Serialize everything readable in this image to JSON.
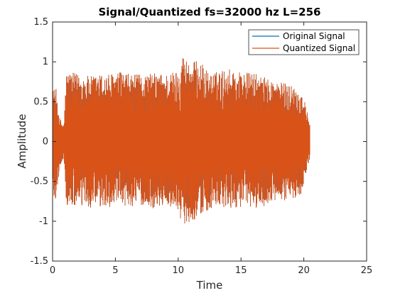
{
  "chart_data": {
    "type": "line",
    "title": "Signal/Quantized fs=32000 hz L=256",
    "xlabel": "Time",
    "ylabel": "Amplitude",
    "xlim": [
      0,
      25
    ],
    "ylim": [
      -1.5,
      1.5
    ],
    "xticks": [
      0,
      5,
      10,
      15,
      20,
      25
    ],
    "yticks": [
      -1.5,
      -1,
      -0.5,
      0,
      0.5,
      1,
      1.5
    ],
    "xtick_labels": [
      "0",
      "5",
      "10",
      "15",
      "20",
      "25"
    ],
    "ytick_labels": [
      "-1.5",
      "-1",
      "-0.5",
      "0",
      "0.5",
      "1",
      "1.5"
    ],
    "legend_position": "top-right",
    "series": [
      {
        "name": "Original Signal",
        "color": "#0072BD",
        "time_range": [
          0,
          20.5
        ],
        "envelope": [
          {
            "t": 0.0,
            "max": 0.3,
            "min": -0.3
          },
          {
            "t": 0.05,
            "max": 0.65,
            "min": -0.75
          },
          {
            "t": 0.3,
            "max": 0.65,
            "min": -0.7
          },
          {
            "t": 0.55,
            "max": 0.3,
            "min": -0.35
          },
          {
            "t": 0.9,
            "max": 0.22,
            "min": -0.2
          },
          {
            "t": 1.1,
            "max": 0.88,
            "min": -0.82
          },
          {
            "t": 2.0,
            "max": 0.85,
            "min": -0.82
          },
          {
            "t": 3.0,
            "max": 0.82,
            "min": -0.84
          },
          {
            "t": 4.0,
            "max": 0.85,
            "min": -0.85
          },
          {
            "t": 5.0,
            "max": 0.86,
            "min": -0.8
          },
          {
            "t": 5.5,
            "max": 0.88,
            "min": -0.82
          },
          {
            "t": 6.0,
            "max": 0.85,
            "min": -0.82
          },
          {
            "t": 7.0,
            "max": 0.84,
            "min": -0.8
          },
          {
            "t": 8.0,
            "max": 0.86,
            "min": -0.84
          },
          {
            "t": 9.0,
            "max": 0.85,
            "min": -0.8
          },
          {
            "t": 10.0,
            "max": 0.9,
            "min": -0.85
          },
          {
            "t": 10.3,
            "max": 1.1,
            "min": -1.05
          },
          {
            "t": 11.0,
            "max": 1.0,
            "min": -1.0
          },
          {
            "t": 11.7,
            "max": 1.02,
            "min": -0.95
          },
          {
            "t": 12.5,
            "max": 0.85,
            "min": -0.85
          },
          {
            "t": 14.0,
            "max": 0.92,
            "min": -0.85
          },
          {
            "t": 15.0,
            "max": 0.88,
            "min": -0.82
          },
          {
            "t": 16.0,
            "max": 0.86,
            "min": -0.85
          },
          {
            "t": 17.0,
            "max": 0.8,
            "min": -0.8
          },
          {
            "t": 18.0,
            "max": 0.75,
            "min": -0.75
          },
          {
            "t": 19.0,
            "max": 0.72,
            "min": -0.74
          },
          {
            "t": 19.8,
            "max": 0.62,
            "min": -0.65
          },
          {
            "t": 20.1,
            "max": 0.5,
            "min": -0.45
          },
          {
            "t": 20.5,
            "max": 0.2,
            "min": -0.2
          }
        ]
      },
      {
        "name": "Quantized Signal",
        "color": "#D95319",
        "time_range": [
          0,
          20.5
        ],
        "envelope": [
          {
            "t": 0.0,
            "max": 0.3,
            "min": -0.3
          },
          {
            "t": 0.05,
            "max": 0.66,
            "min": -0.76
          },
          {
            "t": 0.3,
            "max": 0.66,
            "min": -0.71
          },
          {
            "t": 0.55,
            "max": 0.3,
            "min": -0.35
          },
          {
            "t": 0.9,
            "max": 0.22,
            "min": -0.2
          },
          {
            "t": 1.1,
            "max": 0.88,
            "min": -0.82
          },
          {
            "t": 2.0,
            "max": 0.85,
            "min": -0.82
          },
          {
            "t": 3.0,
            "max": 0.82,
            "min": -0.84
          },
          {
            "t": 4.0,
            "max": 0.85,
            "min": -0.85
          },
          {
            "t": 5.0,
            "max": 0.86,
            "min": -0.8
          },
          {
            "t": 5.5,
            "max": 0.88,
            "min": -0.82
          },
          {
            "t": 6.0,
            "max": 0.85,
            "min": -0.82
          },
          {
            "t": 7.0,
            "max": 0.84,
            "min": -0.8
          },
          {
            "t": 8.0,
            "max": 0.86,
            "min": -0.84
          },
          {
            "t": 9.0,
            "max": 0.85,
            "min": -0.8
          },
          {
            "t": 10.0,
            "max": 0.9,
            "min": -0.85
          },
          {
            "t": 10.3,
            "max": 1.1,
            "min": -1.05
          },
          {
            "t": 11.0,
            "max": 1.0,
            "min": -1.0
          },
          {
            "t": 11.7,
            "max": 1.02,
            "min": -0.95
          },
          {
            "t": 12.5,
            "max": 0.85,
            "min": -0.85
          },
          {
            "t": 14.0,
            "max": 0.92,
            "min": -0.85
          },
          {
            "t": 15.0,
            "max": 0.88,
            "min": -0.82
          },
          {
            "t": 16.0,
            "max": 0.86,
            "min": -0.85
          },
          {
            "t": 17.0,
            "max": 0.8,
            "min": -0.8
          },
          {
            "t": 18.0,
            "max": 0.75,
            "min": -0.75
          },
          {
            "t": 19.0,
            "max": 0.72,
            "min": -0.74
          },
          {
            "t": 19.8,
            "max": 0.62,
            "min": -0.65
          },
          {
            "t": 20.1,
            "max": 0.5,
            "min": -0.45
          },
          {
            "t": 20.5,
            "max": 0.2,
            "min": -0.2
          }
        ]
      }
    ]
  }
}
